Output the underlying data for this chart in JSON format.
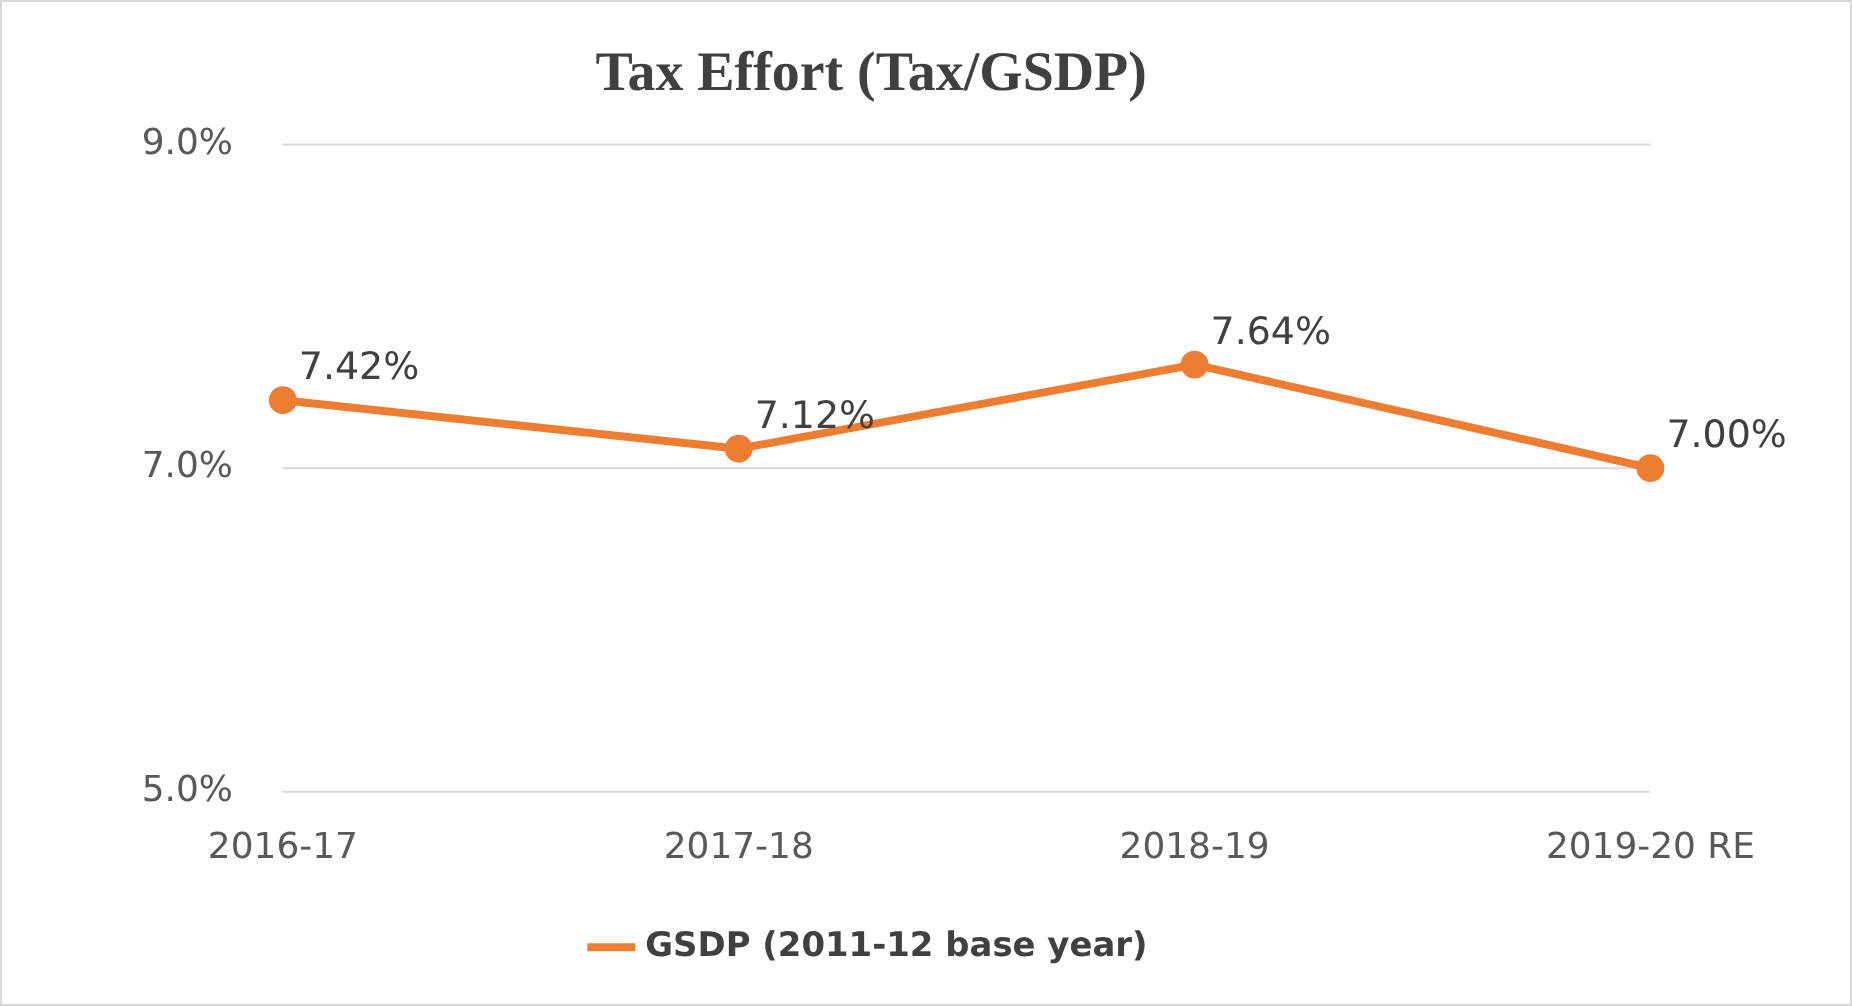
{
  "chart_data": {
    "type": "line",
    "title": "Tax Effort (Tax/GSDP)",
    "categories": [
      "2016-17",
      "2017-18",
      "2018-19",
      "2019-20 RE"
    ],
    "series": [
      {
        "name": "GSDP (2011-12 base year)",
        "color": "#ed7d31",
        "values": [
          7.42,
          7.12,
          7.64,
          7.0
        ],
        "value_labels": [
          "7.42%",
          "7.12%",
          "7.64%",
          "7.00%"
        ]
      }
    ],
    "ylim": [
      5,
      9
    ],
    "yticks": [
      {
        "value": 5,
        "label": "5.0%"
      },
      {
        "value": 7,
        "label": "7.0%"
      },
      {
        "value": 9,
        "label": "9.0%"
      }
    ],
    "grid": "y",
    "legend": "bottom",
    "marker": "circle",
    "line_style": "solid"
  }
}
